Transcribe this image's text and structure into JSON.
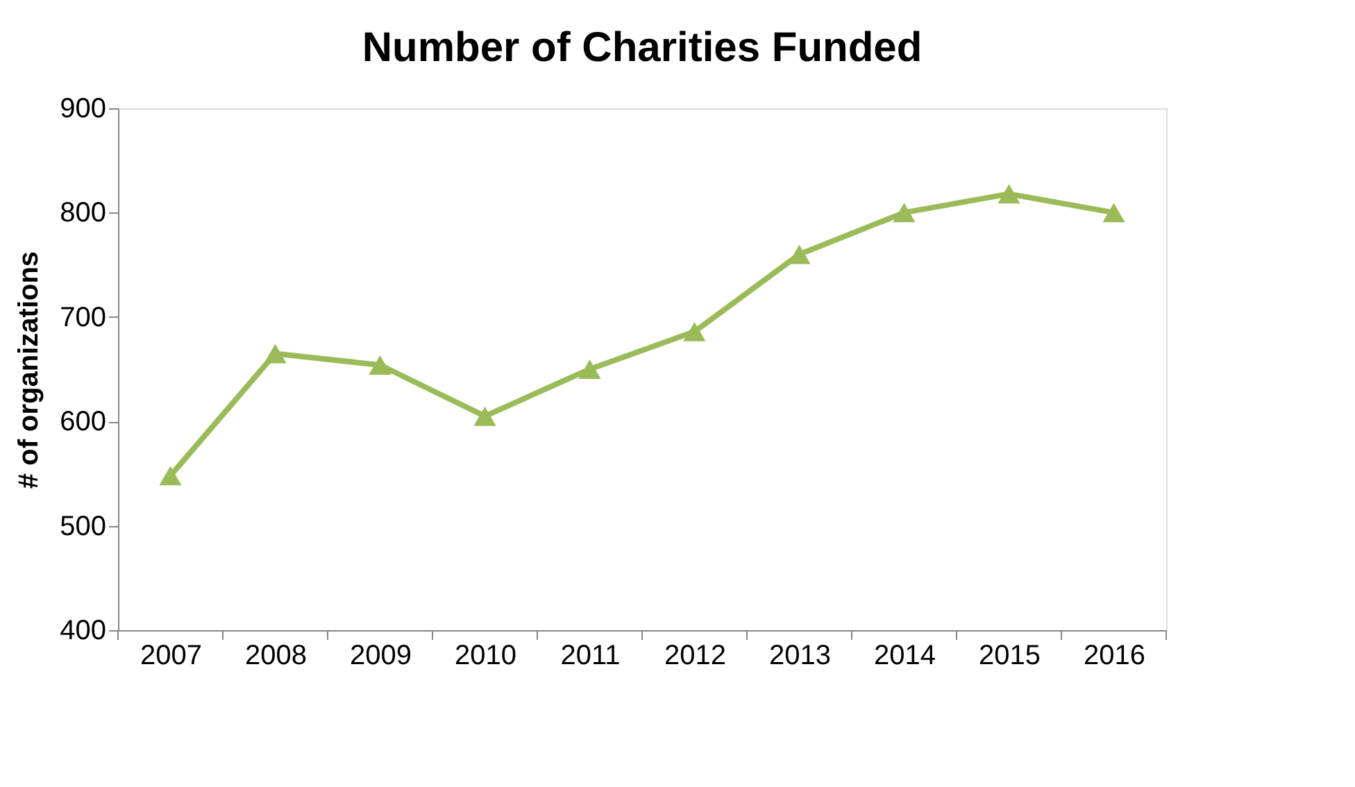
{
  "chart_data": {
    "type": "line",
    "title": "Number of Charities Funded",
    "ylabel": "# of organizations",
    "categories": [
      "2007",
      "2008",
      "2009",
      "2010",
      "2011",
      "2012",
      "2013",
      "2014",
      "2015",
      "2016"
    ],
    "series": [
      {
        "color": "#9bbb59",
        "values": [
          548,
          665,
          654,
          605,
          650,
          686,
          760,
          800,
          818,
          800
        ]
      }
    ],
    "ylim": [
      400,
      900
    ],
    "yticks": [
      400,
      500,
      600,
      700,
      800,
      900
    ],
    "grid": false,
    "legend": false,
    "marker": "triangle",
    "line_style": "solid"
  }
}
